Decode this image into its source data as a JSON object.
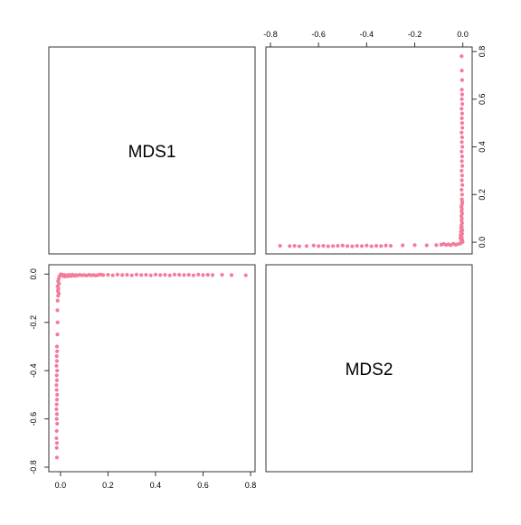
{
  "chart_data": {
    "type": "scatter",
    "kind": "pairs-plot",
    "variables": [
      "MDS1",
      "MDS2"
    ],
    "point_color": "#f47c9c",
    "mds1_ticks": [
      0.0,
      0.2,
      0.4,
      0.6,
      0.8
    ],
    "mds1_tick_labels": [
      "0.0",
      "0.2",
      "0.4",
      "0.6",
      "0.8"
    ],
    "mds2_ticks": [
      -0.8,
      -0.6,
      -0.4,
      -0.2,
      0.0
    ],
    "mds2_tick_labels": [
      "-0.8",
      "-0.6",
      "-0.4",
      "-0.2",
      "0.0"
    ],
    "mds1_range": [
      -0.03,
      0.8
    ],
    "mds2_range": [
      -0.8,
      0.02
    ],
    "points": [
      [
        0.001,
        -0.001
      ],
      [
        0.003,
        -0.004
      ],
      [
        0.005,
        -0.002
      ],
      [
        0.008,
        -0.006
      ],
      [
        0.01,
        -0.003
      ],
      [
        0.012,
        -0.008
      ],
      [
        0.015,
        -0.005
      ],
      [
        0.018,
        -0.01
      ],
      [
        0.02,
        -0.004
      ],
      [
        0.025,
        -0.007
      ],
      [
        0.03,
        -0.009
      ],
      [
        0.035,
        -0.003
      ],
      [
        0.04,
        -0.006
      ],
      [
        0.045,
        -0.008
      ],
      [
        0.05,
        -0.002
      ],
      [
        0.055,
        -0.005
      ],
      [
        0.06,
        -0.007
      ],
      [
        0.065,
        -0.004
      ],
      [
        0.07,
        -0.006
      ],
      [
        0.08,
        -0.003
      ],
      [
        0.09,
        -0.005
      ],
      [
        0.1,
        -0.004
      ],
      [
        0.11,
        -0.006
      ],
      [
        0.12,
        -0.003
      ],
      [
        0.13,
        -0.005
      ],
      [
        0.14,
        -0.004
      ],
      [
        0.15,
        -0.006
      ],
      [
        0.16,
        -0.003
      ],
      [
        0.17,
        -0.002
      ],
      [
        0.18,
        -0.004
      ],
      [
        0.2,
        -0.003
      ],
      [
        0.22,
        -0.005
      ],
      [
        0.24,
        -0.002
      ],
      [
        0.26,
        -0.004
      ],
      [
        0.28,
        -0.003
      ],
      [
        0.3,
        -0.005
      ],
      [
        0.32,
        -0.002
      ],
      [
        0.34,
        -0.004
      ],
      [
        0.36,
        -0.003
      ],
      [
        0.38,
        -0.005
      ],
      [
        0.4,
        -0.002
      ],
      [
        0.42,
        -0.004
      ],
      [
        0.44,
        -0.003
      ],
      [
        0.46,
        -0.005
      ],
      [
        0.48,
        -0.002
      ],
      [
        0.5,
        -0.003
      ],
      [
        0.52,
        -0.004
      ],
      [
        0.54,
        -0.003
      ],
      [
        0.56,
        -0.005
      ],
      [
        0.58,
        -0.002
      ],
      [
        0.6,
        -0.004
      ],
      [
        0.62,
        -0.003
      ],
      [
        0.64,
        -0.004
      ],
      [
        0.68,
        -0.003
      ],
      [
        0.72,
        -0.004
      ],
      [
        0.78,
        -0.005
      ],
      [
        -0.005,
        -0.01
      ],
      [
        -0.008,
        -0.02
      ],
      [
        -0.01,
        -0.03
      ],
      [
        -0.006,
        -0.04
      ],
      [
        -0.012,
        -0.05
      ],
      [
        -0.009,
        -0.06
      ],
      [
        -0.011,
        -0.07
      ],
      [
        -0.007,
        -0.08
      ],
      [
        -0.01,
        -0.09
      ],
      [
        -0.012,
        -0.11
      ],
      [
        -0.013,
        -0.15
      ],
      [
        -0.012,
        -0.2
      ],
      [
        -0.013,
        -0.25
      ],
      [
        -0.015,
        -0.3
      ],
      [
        -0.014,
        -0.32
      ],
      [
        -0.016,
        -0.34
      ],
      [
        -0.015,
        -0.36
      ],
      [
        -0.017,
        -0.38
      ],
      [
        -0.014,
        -0.4
      ],
      [
        -0.016,
        -0.42
      ],
      [
        -0.015,
        -0.44
      ],
      [
        -0.017,
        -0.46
      ],
      [
        -0.016,
        -0.48
      ],
      [
        -0.014,
        -0.5
      ],
      [
        -0.015,
        -0.52
      ],
      [
        -0.016,
        -0.54
      ],
      [
        -0.017,
        -0.56
      ],
      [
        -0.015,
        -0.58
      ],
      [
        -0.016,
        -0.6
      ],
      [
        -0.014,
        -0.62
      ],
      [
        -0.016,
        -0.65
      ],
      [
        -0.017,
        -0.68
      ],
      [
        -0.015,
        -0.7
      ],
      [
        -0.016,
        -0.72
      ],
      [
        -0.015,
        -0.76
      ]
    ]
  }
}
